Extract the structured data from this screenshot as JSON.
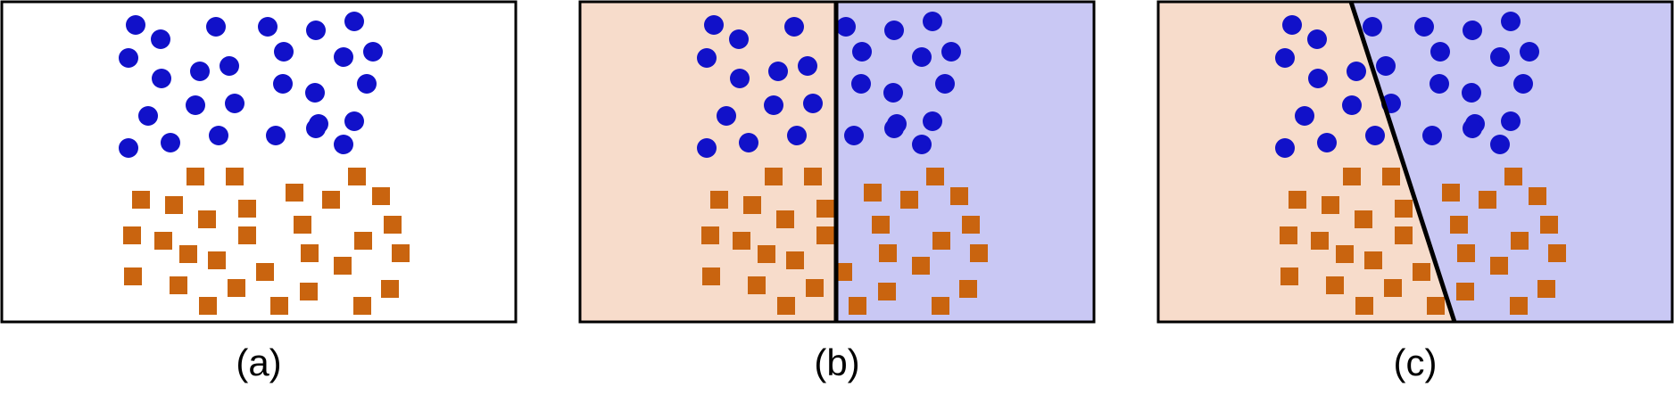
{
  "panels": [
    {
      "caption": "(a)",
      "region_left_color": "#ffffff",
      "region_right_color": "#ffffff",
      "boundary": "none"
    },
    {
      "caption": "(b)",
      "region_left_color": "#f7dccb",
      "region_right_color": "#c9c8f4",
      "boundary": "vertical"
    },
    {
      "caption": "(c)",
      "region_left_color": "#f7dccb",
      "region_right_color": "#c9c8f4",
      "boundary": "slanted"
    }
  ],
  "colors": {
    "circle": "#1111c9",
    "square": "#c9640f",
    "border": "#000000",
    "boundary_line": "#000000"
  },
  "legend": {
    "class_a": {
      "shape": "circle"
    },
    "class_b": {
      "shape": "square"
    }
  }
}
